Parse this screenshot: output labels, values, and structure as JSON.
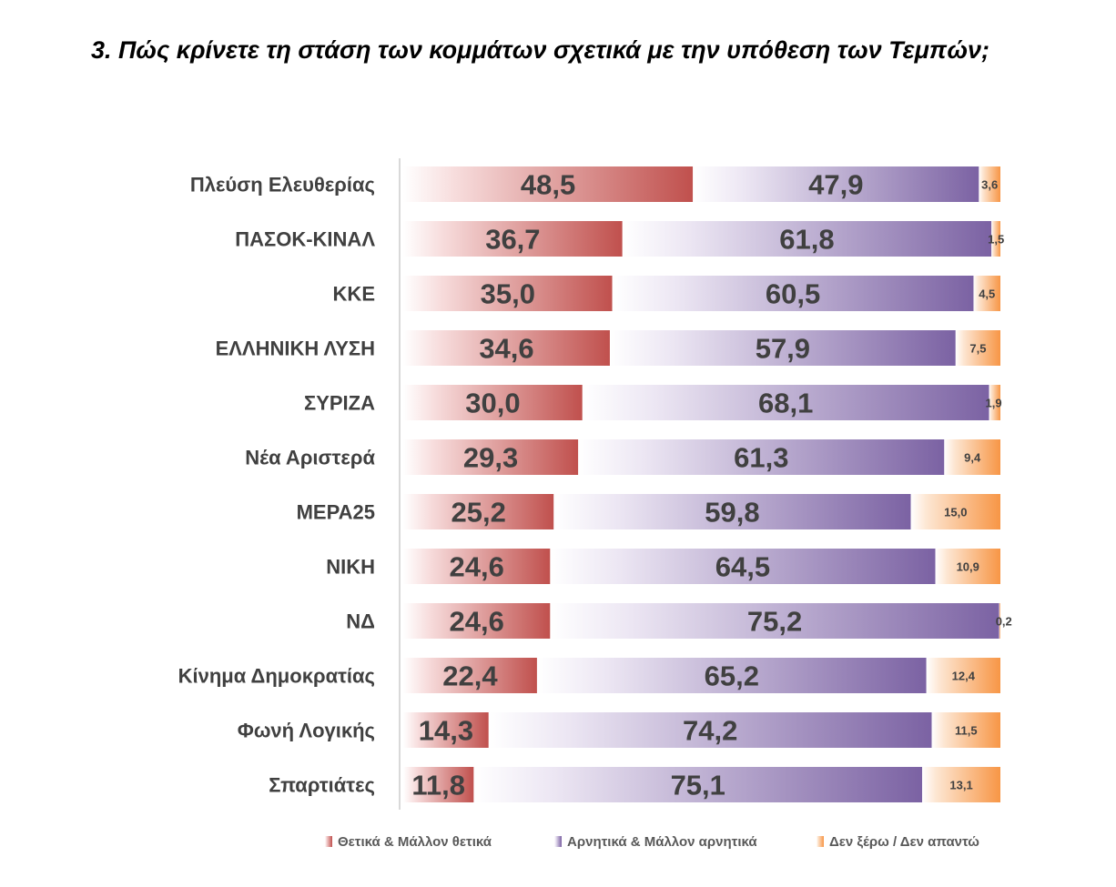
{
  "title": "3. Πώς κρίνετε τη στάση των κομμάτων  σχετικά με την υπόθεση των Τεμπών;",
  "colors": {
    "positive": "#c0504d",
    "positive_light": "#f7dcdc",
    "negative": "#7b62a3",
    "negative_light": "#ece6f3",
    "dontknow": "#f79646",
    "dontknow_light": "#fde6d2",
    "axis": "#d9d9d9",
    "text": "#404040"
  },
  "chart_data": {
    "type": "bar",
    "orientation": "horizontal",
    "stacked": true,
    "categories": [
      "Πλεύση Ελευθερίας",
      "ΠΑΣΟΚ-ΚΙΝΑΛ",
      "ΚΚΕ",
      "ΕΛΛΗΝΙΚΗ ΛΥΣΗ",
      "ΣΥΡΙΖΑ",
      "Νέα Αριστερά",
      "ΜΕΡΑ25",
      "ΝΙΚΗ",
      "ΝΔ",
      "Κίνημα Δημοκρατίας",
      "Φωνή Λογικής",
      "Σπαρτιάτες"
    ],
    "series": [
      {
        "name": "Θετικά & Μάλλον θετικά",
        "values": [
          48.5,
          36.7,
          35.0,
          34.6,
          30.0,
          29.3,
          25.2,
          24.6,
          24.6,
          22.4,
          14.3,
          11.8
        ],
        "labels": [
          "48,5",
          "36,7",
          "35,0",
          "34,6",
          "30,0",
          "29,3",
          "25,2",
          "24,6",
          "24,6",
          "22,4",
          "14,3",
          "11,8"
        ]
      },
      {
        "name": "Αρνητικά & Μάλλον αρνητικά",
        "values": [
          47.9,
          61.8,
          60.5,
          57.9,
          68.1,
          61.3,
          59.8,
          64.5,
          75.2,
          65.2,
          74.2,
          75.1
        ],
        "labels": [
          "47,9",
          "61,8",
          "60,5",
          "57,9",
          "68,1",
          "61,3",
          "59,8",
          "64,5",
          "75,2",
          "65,2",
          "74,2",
          "75,1"
        ]
      },
      {
        "name": "Δεν ξέρω / Δεν απαντώ",
        "values": [
          3.6,
          1.5,
          4.5,
          7.5,
          1.9,
          9.4,
          15.0,
          10.9,
          0.2,
          12.4,
          11.5,
          13.1
        ],
        "labels": [
          "3,6",
          "1,5",
          "4,5",
          "7,5",
          "1,9",
          "9,4",
          "15,0",
          "10,9",
          "0,2",
          "12,4",
          "11,5",
          "13,1"
        ]
      }
    ],
    "xlim": [
      0,
      100
    ],
    "grid": false,
    "legend_position": "bottom"
  }
}
